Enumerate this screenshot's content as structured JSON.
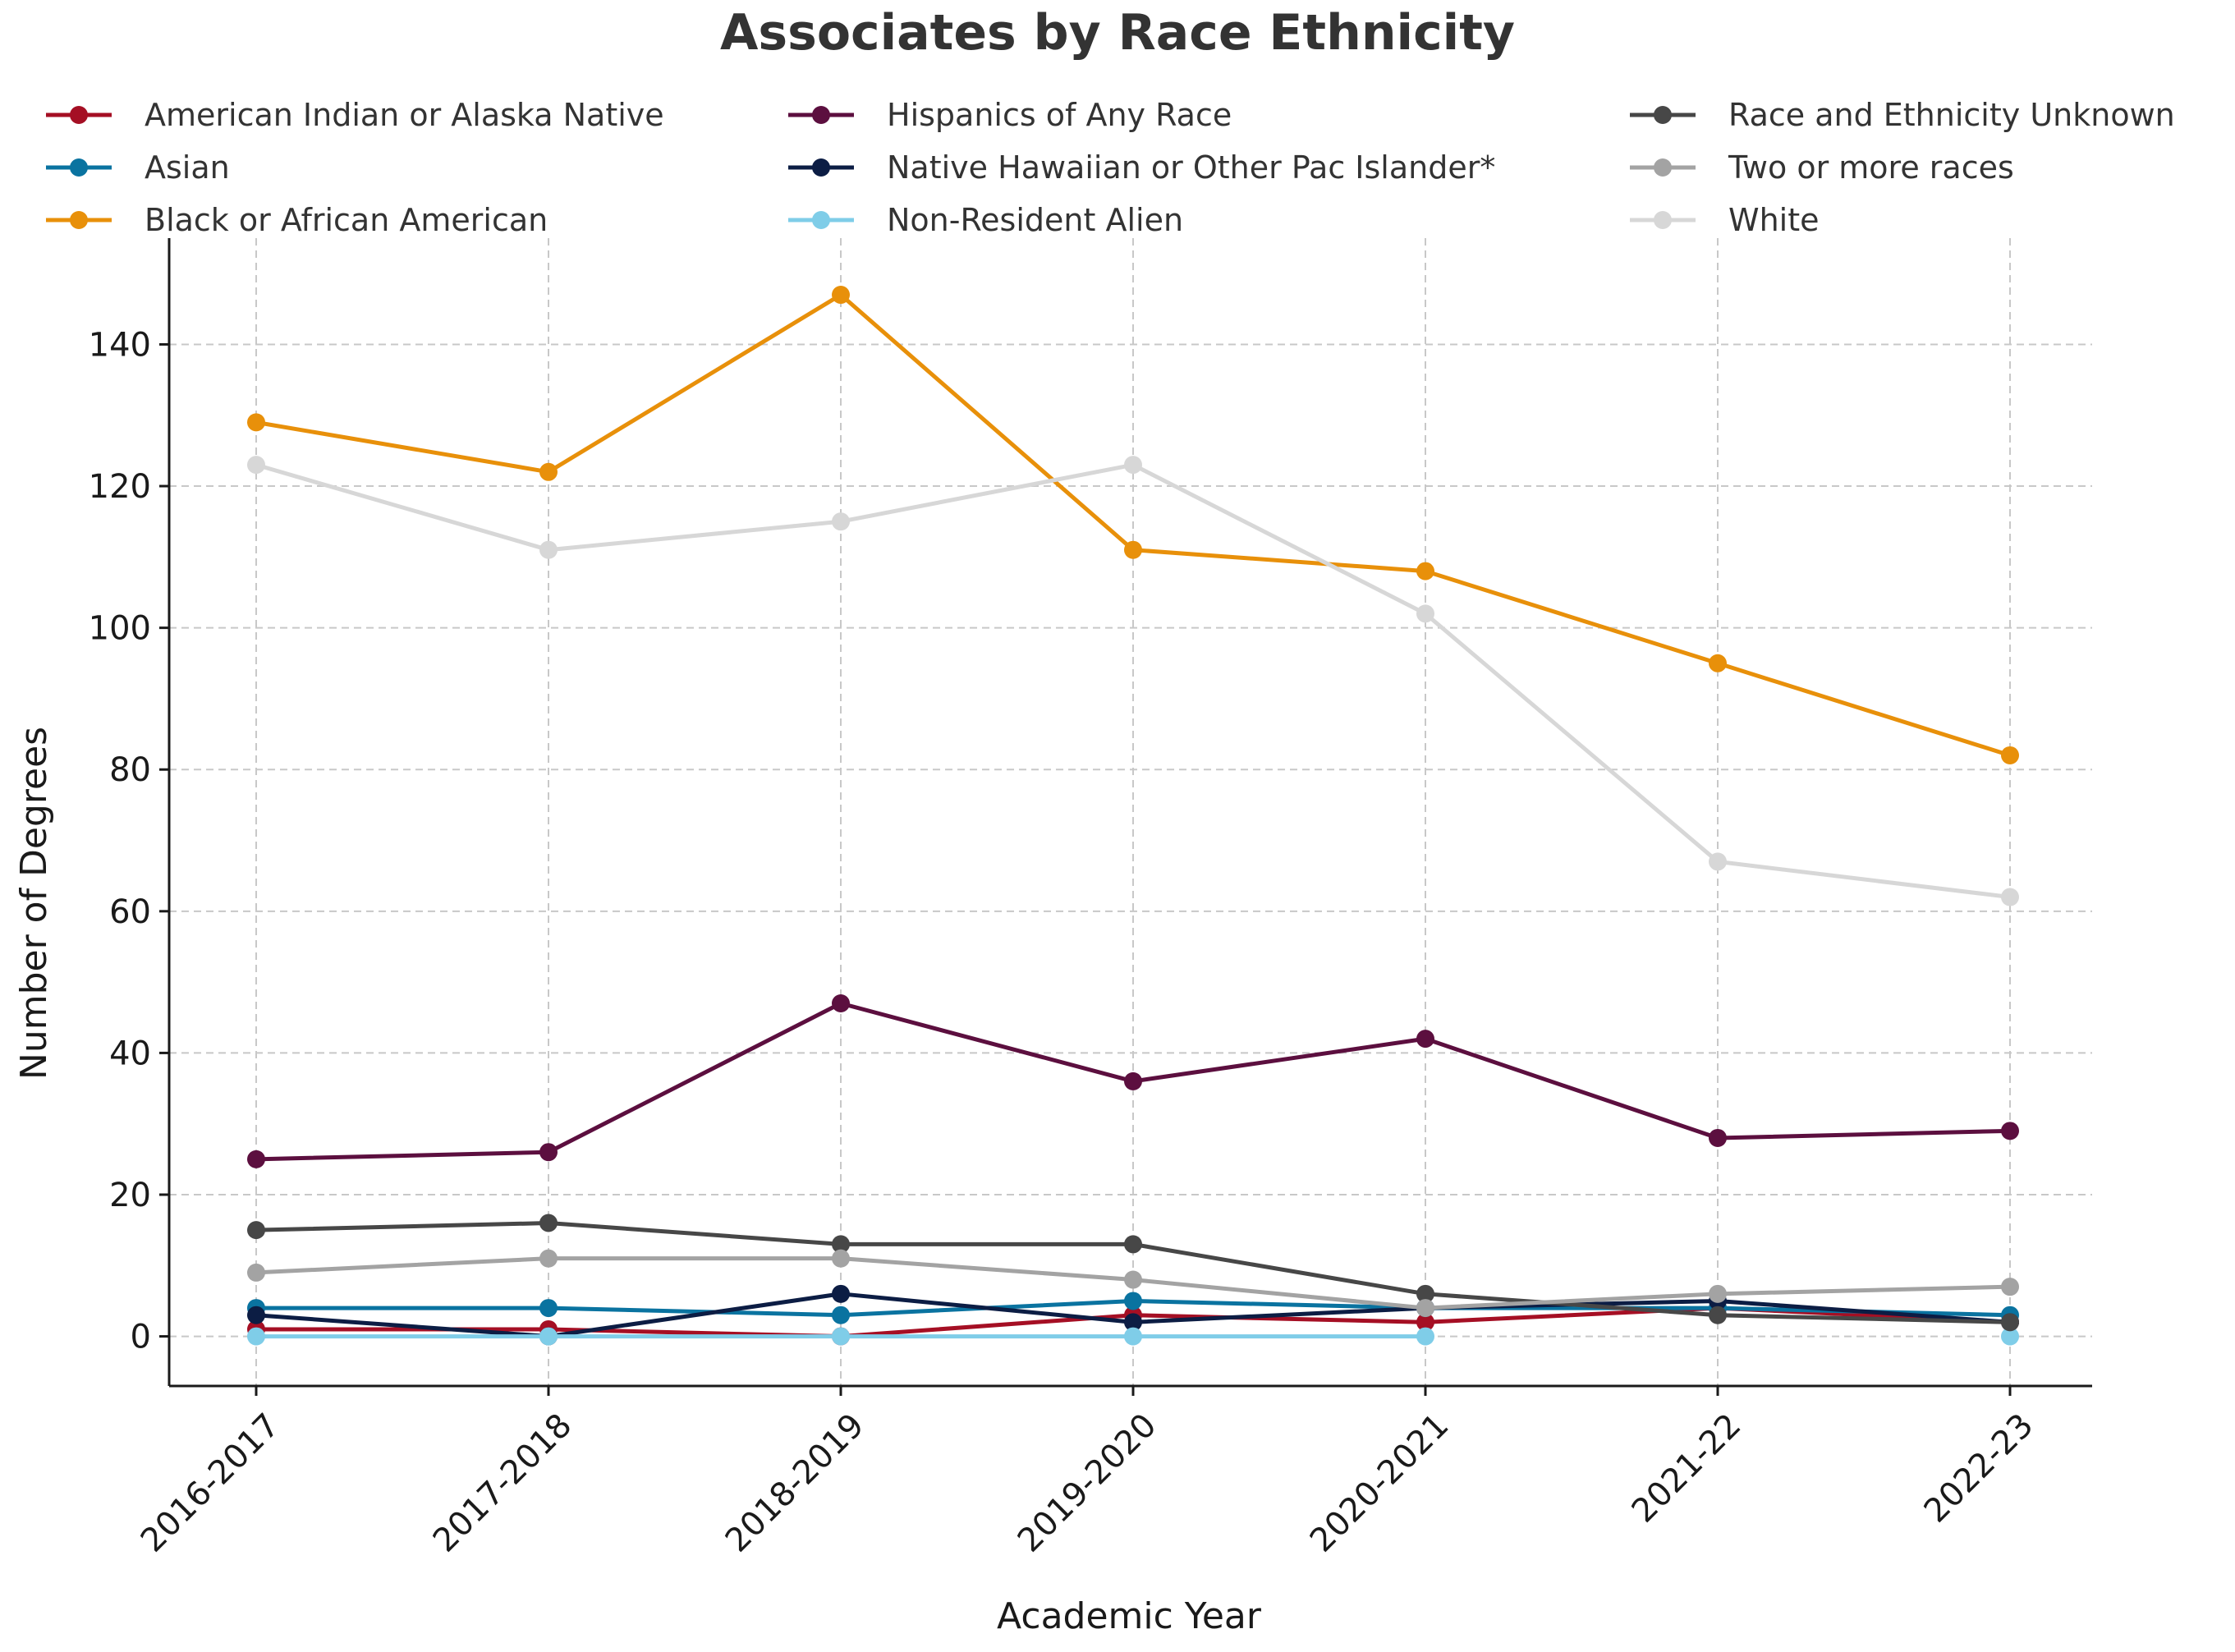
{
  "chart_data": {
    "type": "line",
    "title": "Associates by Race Ethnicity",
    "xlabel": "Academic Year",
    "ylabel": "Number of Degrees",
    "categories": [
      "2016-2017",
      "2017-2018",
      "2018-2019",
      "2019-2020",
      "2020-2021",
      "2021-22",
      "2022-23"
    ],
    "ylim": [
      -7,
      155
    ],
    "yticks": [
      0,
      20,
      40,
      60,
      80,
      100,
      120,
      140
    ],
    "grid": true,
    "legend_position": "top",
    "series": [
      {
        "name": "American Indian or Alaska Native",
        "color": "#a50f24",
        "values": [
          1,
          1,
          0,
          3,
          2,
          4,
          2
        ]
      },
      {
        "name": "Asian",
        "color": "#0a73a0",
        "values": [
          4,
          4,
          3,
          5,
          4,
          4,
          3
        ]
      },
      {
        "name": "Black or African American",
        "color": "#e8900a",
        "values": [
          129,
          122,
          147,
          111,
          108,
          95,
          82
        ]
      },
      {
        "name": "Hispanics of Any Race",
        "color": "#5c0f3f",
        "values": [
          25,
          26,
          47,
          36,
          42,
          28,
          29
        ]
      },
      {
        "name": "Native Hawaiian or Other Pac Islander*",
        "color": "#0c1d44",
        "values": [
          3,
          0,
          6,
          2,
          4,
          5,
          2
        ]
      },
      {
        "name": "Non-Resident Alien",
        "color": "#7fcde8",
        "values": [
          0,
          0,
          0,
          0,
          0,
          null,
          0
        ]
      },
      {
        "name": "Race and Ethnicity Unknown",
        "color": "#474747",
        "values": [
          15,
          16,
          13,
          13,
          6,
          3,
          2
        ]
      },
      {
        "name": "Two or more races",
        "color": "#a3a3a3",
        "values": [
          9,
          11,
          11,
          8,
          4,
          6,
          7
        ]
      },
      {
        "name": "White",
        "color": "#d7d7d7",
        "values": [
          123,
          111,
          115,
          123,
          102,
          67,
          62
        ]
      }
    ]
  }
}
